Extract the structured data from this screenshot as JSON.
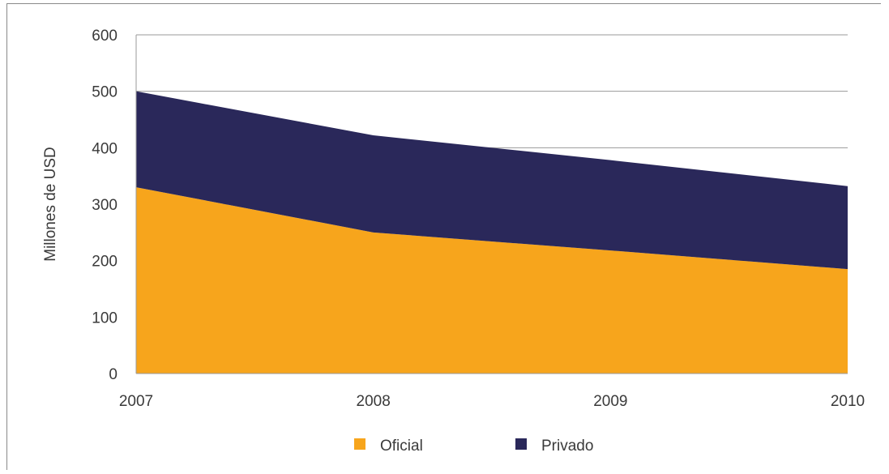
{
  "chart_data": {
    "type": "area",
    "stacked": true,
    "x": [
      "2007",
      "2008",
      "2009",
      "2010"
    ],
    "ylabel": "Millones de USD",
    "ylim": [
      0,
      600
    ],
    "yticks": [
      "0",
      "100",
      "200",
      "300",
      "400",
      "500",
      "600"
    ],
    "grid": true,
    "legend_position": "bottom",
    "series": [
      {
        "name": "Oficial",
        "color": "#f7a51c",
        "values": [
          330,
          250,
          218,
          185
        ]
      },
      {
        "name": "Privado",
        "color": "#2a285a",
        "values": [
          170,
          172,
          160,
          147
        ]
      }
    ]
  }
}
